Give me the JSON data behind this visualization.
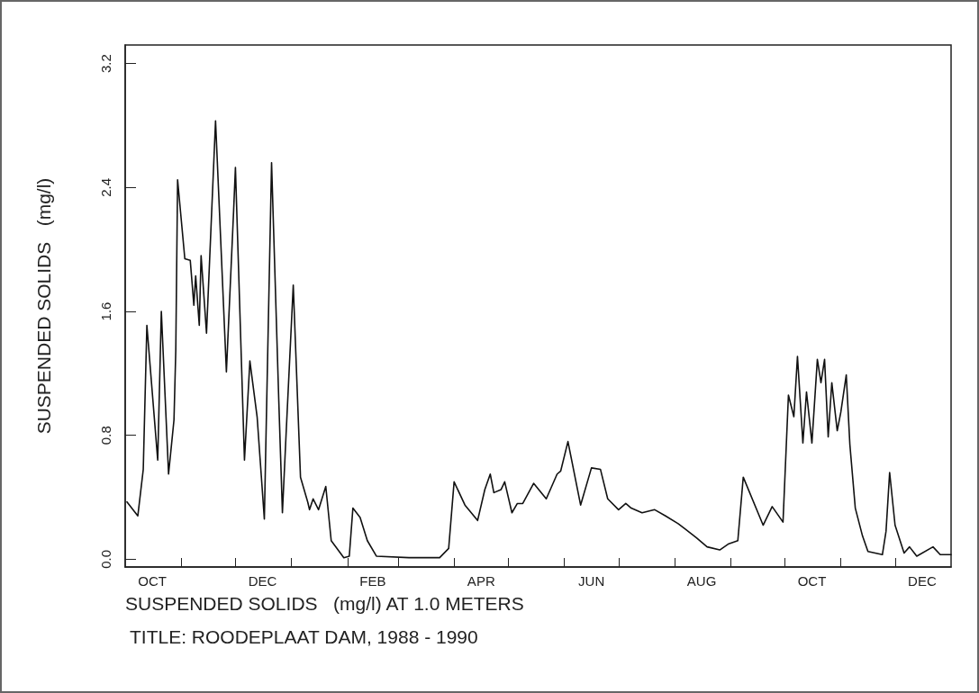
{
  "chart_data": {
    "type": "line",
    "title": "TITLE: ROODEPLAAT DAM, 1988 - 1990",
    "xlabel": "SUSPENDED SOLIDS   (mg/l) AT 1.0 METERS",
    "ylabel": "SUSPENDED SOLIDS   (mg/l)",
    "x": [
      "1988-10-02",
      "1988-10-08",
      "1988-10-11",
      "1988-10-13",
      "1988-10-19",
      "1988-10-21",
      "1988-10-25",
      "1988-10-28",
      "1988-10-29",
      "1988-10-30",
      "1988-11-03",
      "1988-11-06",
      "1988-11-08",
      "1988-11-09",
      "1988-11-11",
      "1988-11-12",
      "1988-11-15",
      "1988-11-20",
      "1988-11-26",
      "1988-11-30",
      "1988-12-01",
      "1988-12-06",
      "1988-12-09",
      "1988-12-13",
      "1988-12-17",
      "1988-12-21",
      "1988-12-25",
      "1988-12-27",
      "1988-12-29",
      "1989-01-02",
      "1989-01-06",
      "1989-01-10",
      "1989-01-11",
      "1989-01-13",
      "1989-01-16",
      "1989-01-20",
      "1989-01-23",
      "1989-01-30",
      "1989-02-02",
      "1989-02-04",
      "1989-02-08",
      "1989-02-12",
      "1989-02-17",
      "1989-03-07",
      "1989-03-24",
      "1989-03-29",
      "1989-04-01",
      "1989-04-07",
      "1989-04-14",
      "1989-04-18",
      "1989-04-21",
      "1989-04-23",
      "1989-04-27",
      "1989-04-29",
      "1989-05-03",
      "1989-05-06",
      "1989-05-09",
      "1989-05-15",
      "1989-05-22",
      "1989-05-28",
      "1989-05-30",
      "1989-06-03",
      "1989-06-10",
      "1989-06-16",
      "1989-06-21",
      "1989-06-25",
      "1989-07-01",
      "1989-07-05",
      "1989-07-08",
      "1989-07-14",
      "1989-07-21",
      "1989-07-27",
      "1989-08-03",
      "1989-08-13",
      "1989-08-19",
      "1989-08-26",
      "1989-08-31",
      "1989-09-05",
      "1989-09-08",
      "1989-09-19",
      "1989-09-24",
      "1989-09-30",
      "1989-10-03",
      "1989-10-06",
      "1989-10-08",
      "1989-10-11",
      "1989-10-13",
      "1989-10-16",
      "1989-10-19",
      "1989-10-21",
      "1989-10-23",
      "1989-10-25",
      "1989-10-27",
      "1989-10-30",
      "1989-11-01",
      "1989-11-04",
      "1989-11-06",
      "1989-11-09",
      "1989-11-13",
      "1989-11-16",
      "1989-11-24",
      "1989-11-26",
      "1989-11-28",
      "1989-12-01",
      "1989-12-06",
      "1989-12-09",
      "1989-12-13",
      "1989-12-22",
      "1989-12-26",
      "1990-01-01"
    ],
    "values": [
      0.37,
      0.28,
      0.58,
      1.51,
      0.64,
      1.6,
      0.55,
      0.9,
      1.35,
      2.45,
      1.94,
      1.93,
      1.64,
      1.83,
      1.51,
      1.96,
      1.46,
      2.83,
      1.21,
      2.25,
      2.53,
      0.64,
      1.28,
      0.92,
      0.26,
      2.56,
      1.02,
      0.3,
      0.8,
      1.77,
      0.53,
      0.37,
      0.32,
      0.39,
      0.32,
      0.47,
      0.12,
      0.01,
      0.02,
      0.33,
      0.27,
      0.12,
      0.02,
      0.01,
      0.01,
      0.07,
      0.5,
      0.35,
      0.25,
      0.45,
      0.55,
      0.43,
      0.45,
      0.5,
      0.3,
      0.36,
      0.36,
      0.49,
      0.39,
      0.55,
      0.57,
      0.76,
      0.35,
      0.59,
      0.58,
      0.39,
      0.32,
      0.36,
      0.33,
      0.3,
      0.32,
      0.28,
      0.23,
      0.14,
      0.08,
      0.06,
      0.1,
      0.12,
      0.53,
      0.22,
      0.34,
      0.24,
      1.06,
      0.92,
      1.31,
      0.75,
      1.08,
      0.75,
      1.29,
      1.14,
      1.29,
      0.79,
      1.14,
      0.83,
      0.95,
      1.19,
      0.74,
      0.33,
      0.15,
      0.05,
      0.03,
      0.18,
      0.56,
      0.22,
      0.04,
      0.08,
      0.02,
      0.08,
      0.03,
      0.03
    ],
    "color": "#111111",
    "marker": "none",
    "line_style": "solid",
    "grid": false,
    "xlim": [
      "1988-10-01",
      "1990-01-01"
    ],
    "xticks": [
      {
        "value": "1988-11-01",
        "label": null
      },
      {
        "value": "1988-12-01",
        "label": null
      },
      {
        "value": "1989-01-01",
        "label": null
      },
      {
        "value": "1989-02-01",
        "label": null
      },
      {
        "value": "1989-03-01",
        "label": null
      },
      {
        "value": "1989-04-01",
        "label": null
      },
      {
        "value": "1989-05-01",
        "label": null
      },
      {
        "value": "1989-06-01",
        "label": null
      },
      {
        "value": "1989-07-01",
        "label": null
      },
      {
        "value": "1989-08-01",
        "label": null
      },
      {
        "value": "1989-09-01",
        "label": null
      },
      {
        "value": "1989-10-01",
        "label": null
      },
      {
        "value": "1989-11-01",
        "label": null
      },
      {
        "value": "1989-12-01",
        "label": null
      },
      {
        "value": "1988-10-16",
        "label": "OCT"
      },
      {
        "value": "1988-12-16",
        "label": "DEC"
      },
      {
        "value": "1989-02-15",
        "label": "FEB"
      },
      {
        "value": "1989-04-16",
        "label": "APR"
      },
      {
        "value": "1989-06-16",
        "label": "JUN"
      },
      {
        "value": "1989-08-16",
        "label": "AUG"
      },
      {
        "value": "1989-10-16",
        "label": "OCT"
      },
      {
        "value": "1989-12-16",
        "label": "DEC"
      }
    ],
    "ylim": [
      -0.05,
      3.32
    ],
    "yticks": [
      {
        "value": 0,
        "label": "0.0"
      },
      0.8,
      1.6,
      2.4,
      3.2
    ]
  }
}
